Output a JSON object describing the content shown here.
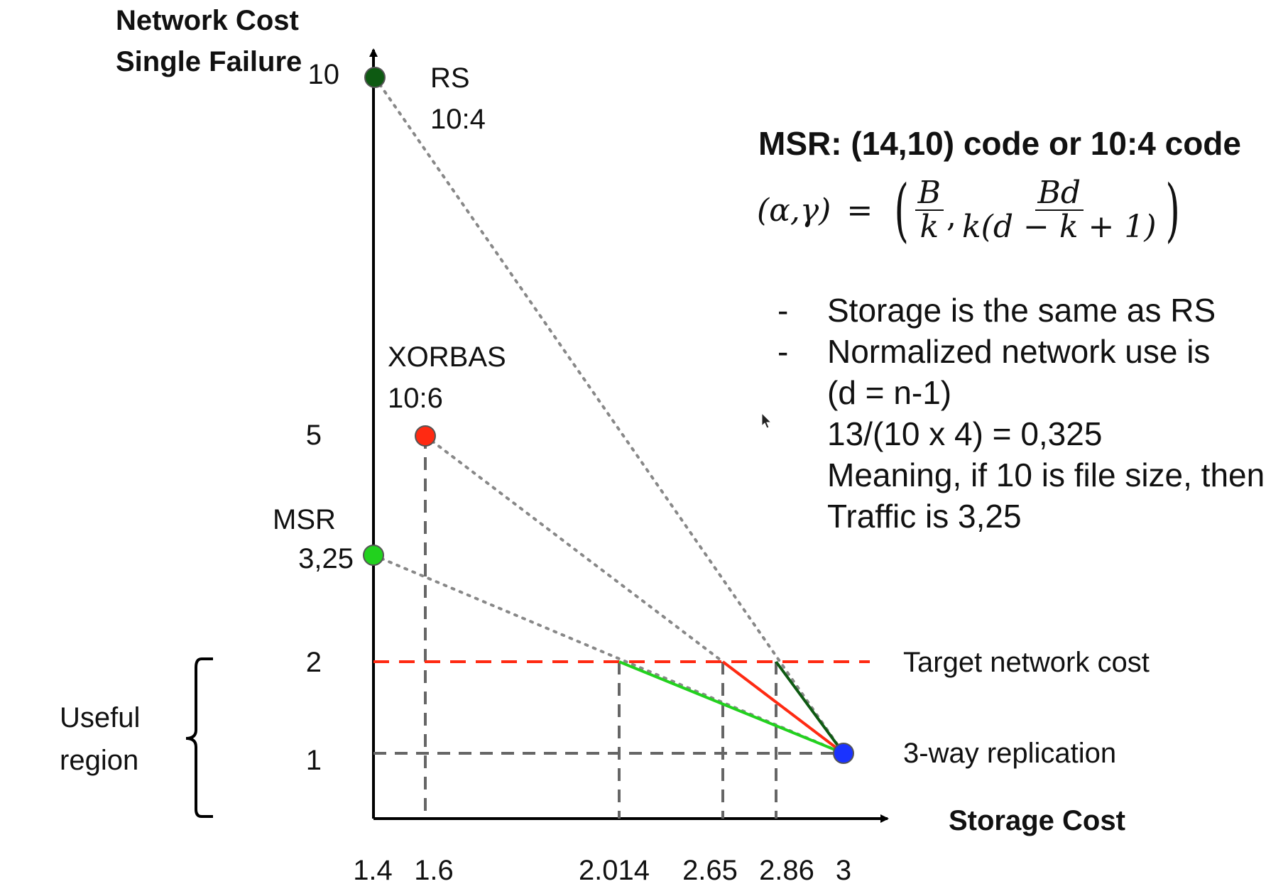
{
  "axes": {
    "y_title_line1": "Network Cost",
    "y_title_line2": "Single Failure",
    "x_title": "Storage Cost"
  },
  "y_ticks": [
    "10",
    "5",
    "2",
    "1"
  ],
  "x_ticks": [
    "1.4",
    "1.6",
    "2.014",
    "2.65",
    "2.86",
    "3"
  ],
  "point_labels": {
    "rs_name": "RS",
    "rs_params": "10:4",
    "xorbas_name": "XORBAS",
    "xorbas_params": "10:6",
    "msr_name": "MSR",
    "msr_value": "3,25"
  },
  "side_labels": {
    "target": "Target network cost",
    "replication": "3-way replication",
    "useful_line1": "Useful",
    "useful_line2": "region"
  },
  "msr_box": {
    "title": "MSR: (14,10) code or 10:4 code",
    "formula_lhs": "(α,γ)",
    "formula_eq": "=",
    "frac1_num": "B",
    "frac1_den": "k",
    "frac2_num": "Bd",
    "frac2_den": "k(d − k + 1)",
    "bullets": [
      "Storage is the same as RS",
      "Normalized network use is"
    ],
    "continuation": [
      "(d = n-1)",
      "13/(10 x 4) = 0,325",
      "Meaning, if 10 is file size, then",
      "Traffic is 3,25"
    ],
    "dash": "-"
  },
  "colors": {
    "rs": "#0e5a12",
    "xorbas": "#ff2a12",
    "msr": "#22d11e",
    "replication": "#1a33ff",
    "target_line": "#ff2a12",
    "guide": "#666666",
    "trend": "#888888"
  }
}
